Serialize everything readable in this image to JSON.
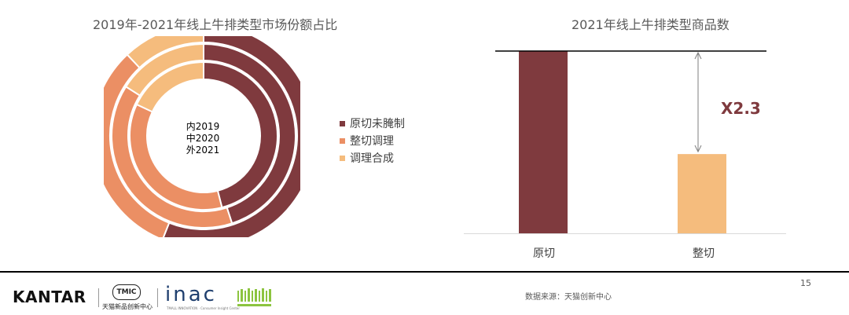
{
  "colors": {
    "raw": "#7F3A3E",
    "cut": "#EB8F64",
    "synth": "#F5BC7D"
  },
  "chart_data": [
    {
      "type": "donut",
      "title": "2019年-2021年线上牛排类型市场份额占比",
      "center_labels": [
        "内2019",
        "中2020",
        "外2021"
      ],
      "categories": [
        "原切未腌制",
        "整切调理",
        "调理合成"
      ],
      "rings": [
        {
          "name": "2019",
          "values": [
            46,
            36,
            18
          ]
        },
        {
          "name": "2020",
          "values": [
            45,
            39,
            16
          ]
        },
        {
          "name": "2021",
          "values": [
            56,
            32,
            12
          ]
        }
      ]
    },
    {
      "type": "bar",
      "title": "2021年线上牛排类型商品数",
      "categories": [
        "原切",
        "整切"
      ],
      "values": [
        2.3,
        1
      ],
      "annotation": "X2.3"
    }
  ],
  "footer": {
    "page": "15",
    "source": "数据来源：天猫创新中心",
    "brand": "KANTAR",
    "tmic": "TMIC",
    "tmic_sub": "天猫新品创新中心",
    "inac": "inac",
    "inac_sub": "TMALL INNOVATION · Consumer Insight Center"
  }
}
